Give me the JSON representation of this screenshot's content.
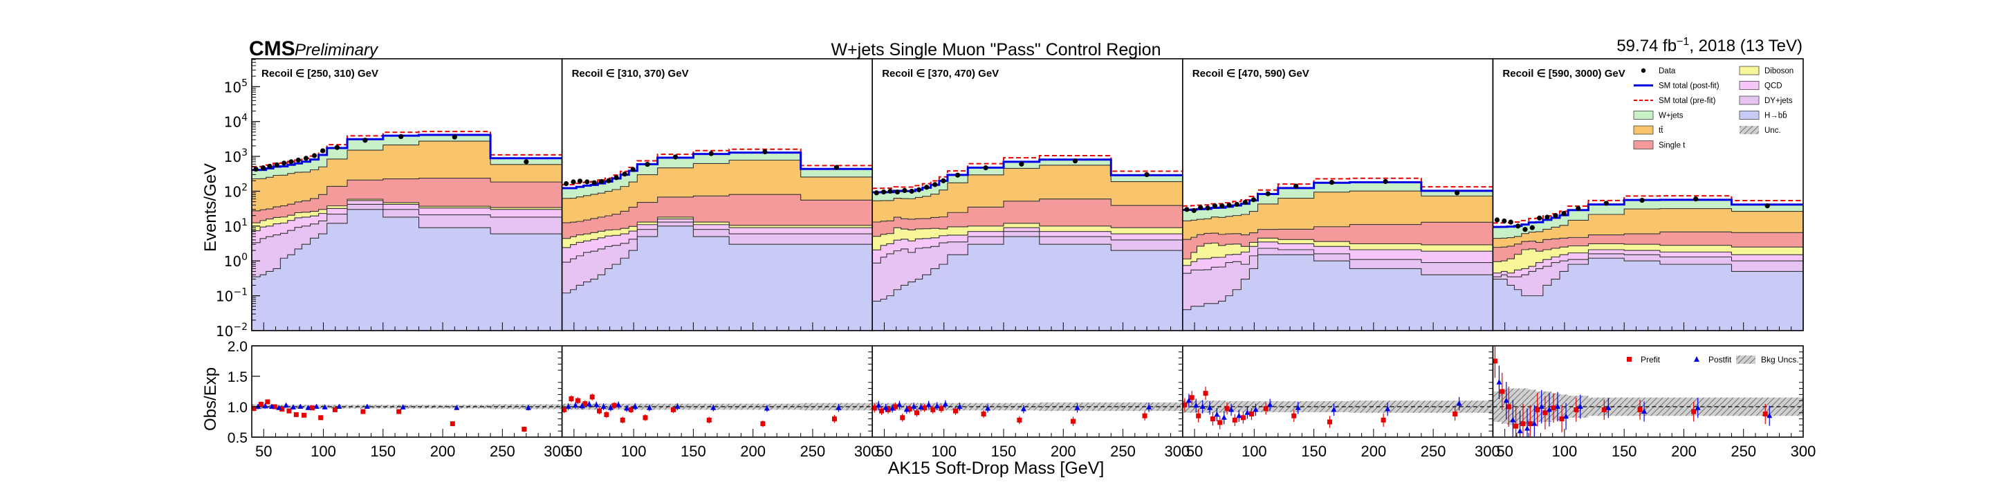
{
  "header": {
    "cms": "CMS",
    "preliminary": "Preliminary",
    "title": "W+jets Single Muon \"Pass\" Control Region",
    "lumi_value": "59.74 fb",
    "lumi_exp": "−1",
    "lumi_rest": ", 2018 (13 TeV)"
  },
  "axes": {
    "ylabel_top": "Events/GeV",
    "ylabel_bottom": "Obs/Exp",
    "xlabel": "AK15 Soft-Drop Mass [GeV]",
    "ymin_exp": -2,
    "ymax_exp": 5.8,
    "ratio_ylim": [
      0.5,
      2.0
    ],
    "ratio_ticks": [
      "0.5",
      "1.0",
      "1.5",
      "2.0"
    ],
    "log_ticks": [
      -2,
      -1,
      0,
      1,
      2,
      3,
      4,
      5
    ],
    "x_ticks": [
      50,
      100,
      150,
      200,
      250,
      300
    ]
  },
  "legend_top": {
    "data": "Data",
    "postfit": "SM total (post-fit)",
    "prefit": "SM total (pre-fit)",
    "wjets": "W+jets",
    "tt": "tt̄",
    "singlet": "Single t",
    "diboson": "Diboson",
    "qcd": "QCD",
    "dyjets": "DY+jets",
    "hbb": "H→bb̄",
    "unc": "Unc."
  },
  "legend_bottom": {
    "prefit": "Prefit",
    "postfit": "Postfit",
    "bkg": "Bkg Uncs."
  },
  "colors": {
    "hbb": "#c9cbf7",
    "dyjets": "#e7c3f4",
    "qcd": "#f5c6f7",
    "diboson": "#f7f79a",
    "singlet": "#f59a9a",
    "tt": "#f8c46c",
    "wjets": "#c7f0c7",
    "postfit": "#0000e6",
    "prefit": "#e60000"
  },
  "chart_data": {
    "type": "bar",
    "stack_order": [
      "hbb",
      "dyjets",
      "qcd",
      "diboson",
      "singlet",
      "tt",
      "wjets"
    ],
    "bin_edges": [
      40,
      47,
      52,
      58,
      64,
      70,
      76,
      82,
      89,
      96,
      103,
      120,
      150,
      180,
      240,
      300
    ],
    "panels": [
      {
        "label": "Recoil ∈ [250, 310) GeV",
        "hbb": [
          0.35,
          0.4,
          0.5,
          0.6,
          1.2,
          1.5,
          2.2,
          3.0,
          4.5,
          6.0,
          12,
          30,
          18,
          9,
          6
        ],
        "dyjets": [
          3,
          4,
          4.5,
          5,
          5,
          6,
          7,
          7,
          7,
          8,
          10,
          12,
          12,
          12,
          12
        ],
        "qcd": [
          4,
          5,
          5,
          6,
          6,
          7,
          8,
          8,
          8,
          9,
          10,
          12,
          12,
          12,
          12
        ],
        "diboson": [
          5,
          5,
          6,
          6,
          6,
          6,
          7,
          7,
          7,
          7,
          6,
          5,
          5,
          4,
          4
        ],
        "singlet": [
          15,
          15,
          15,
          18,
          20,
          22,
          25,
          28,
          35,
          50,
          100,
          150,
          180,
          200,
          150
        ],
        "tt": [
          200,
          200,
          220,
          250,
          250,
          280,
          300,
          300,
          350,
          420,
          700,
          1300,
          1900,
          2500,
          400
        ],
        "wjets": [
          180,
          180,
          200,
          220,
          230,
          250,
          280,
          350,
          400,
          600,
          900,
          1600,
          1800,
          1400,
          300
        ],
        "prefit_scale": 1.25,
        "data": [
          430,
          470,
          520,
          570,
          640,
          700,
          780,
          880,
          1050,
          1450,
          1800,
          2900,
          3700,
          3600,
          700
        ],
        "ratio_prefit": [
          0.97,
          1.04,
          1.08,
          1.0,
          0.96,
          0.93,
          0.87,
          0.86,
          0.98,
          0.82,
          0.95,
          0.92,
          0.92,
          0.72,
          0.63
        ],
        "ratio_postfit": [
          1.0,
          1.01,
          1.0,
          0.98,
          1.02,
          0.99,
          1.0,
          0.98,
          1.0,
          0.99,
          1.0,
          1.0,
          0.99,
          0.98,
          0.98
        ],
        "band": [
          0.04,
          0.04,
          0.03,
          0.03,
          0.03,
          0.03,
          0.03,
          0.03,
          0.03,
          0.03,
          0.03,
          0.03,
          0.03,
          0.03,
          0.04
        ]
      },
      {
        "label": "Recoil ∈ [310, 370) GeV",
        "hbb": [
          0.12,
          0.15,
          0.2,
          0.25,
          0.3,
          0.4,
          0.6,
          0.8,
          1.2,
          2.0,
          5,
          10,
          5,
          3,
          3
        ],
        "dyjets": [
          0.8,
          1.0,
          1.2,
          1.5,
          1.6,
          1.8,
          2,
          2,
          2,
          2.2,
          3,
          3,
          3,
          3,
          3
        ],
        "qcd": [
          1.5,
          1.8,
          2,
          2,
          2.2,
          2.4,
          2.6,
          2.6,
          2.8,
          3,
          3,
          3,
          3,
          3,
          3
        ],
        "diboson": [
          2,
          2,
          2.2,
          2.2,
          2.4,
          2.5,
          2.5,
          2.5,
          2.6,
          2.6,
          2,
          2,
          2,
          1.5,
          1.5
        ],
        "singlet": [
          8,
          8,
          8,
          9,
          10,
          11,
          12,
          14,
          18,
          25,
          35,
          50,
          60,
          70,
          45
        ],
        "tt": [
          50,
          50,
          55,
          60,
          65,
          70,
          80,
          90,
          110,
          150,
          250,
          400,
          550,
          700,
          200
        ],
        "wjets": [
          60,
          60,
          65,
          70,
          70,
          80,
          90,
          120,
          160,
          200,
          300,
          450,
          550,
          500,
          180
        ],
        "prefit_scale": 1.25,
        "data": [
          165,
          185,
          195,
          185,
          175,
          190,
          200,
          245,
          310,
          420,
          590,
          960,
          1200,
          1350,
          480
        ],
        "ratio_prefit": [
          0.95,
          1.13,
          1.1,
          1.05,
          1.16,
          0.93,
          0.87,
          1.02,
          0.78,
          0.95,
          0.82,
          0.95,
          0.78,
          0.72,
          0.8
        ],
        "ratio_postfit": [
          1.0,
          1.02,
          1.01,
          1.04,
          1.03,
          1.0,
          0.98,
          1.03,
          0.97,
          1.0,
          0.98,
          1.0,
          0.98,
          0.97,
          0.98
        ],
        "band": [
          0.05,
          0.05,
          0.05,
          0.05,
          0.05,
          0.05,
          0.05,
          0.05,
          0.05,
          0.05,
          0.05,
          0.05,
          0.05,
          0.05,
          0.06
        ]
      },
      {
        "label": "Recoil ∈ [370, 470) GeV",
        "hbb": [
          0.07,
          0.08,
          0.1,
          0.15,
          0.2,
          0.25,
          0.3,
          0.4,
          0.6,
          0.8,
          1.5,
          3,
          5,
          3,
          2
        ],
        "dyjets": [
          0.8,
          1.2,
          1.5,
          1.8,
          2,
          1.5,
          2,
          2,
          2,
          2.5,
          2,
          2,
          2,
          2,
          2
        ],
        "qcd": [
          1.2,
          1.5,
          1.5,
          2,
          2,
          2,
          2,
          2,
          2,
          2,
          2,
          2,
          2,
          2,
          2
        ],
        "diboson": [
          3,
          3,
          3,
          5,
          4,
          4,
          4,
          4,
          4,
          3,
          4,
          3,
          3,
          3,
          3
        ],
        "singlet": [
          8,
          8,
          8,
          9,
          8,
          8,
          8,
          8,
          9,
          10,
          15,
          25,
          40,
          50,
          30
        ],
        "tt": [
          40,
          40,
          40,
          45,
          45,
          45,
          50,
          55,
          65,
          90,
          150,
          260,
          400,
          500,
          150
        ],
        "wjets": [
          40,
          40,
          40,
          40,
          40,
          40,
          45,
          55,
          70,
          90,
          120,
          180,
          250,
          250,
          100
        ],
        "prefit_scale": 1.3,
        "data": [
          90,
          95,
          100,
          95,
          105,
          100,
          110,
          130,
          155,
          200,
          290,
          470,
          600,
          740,
          300
        ],
        "ratio_prefit": [
          0.98,
          0.93,
          0.95,
          1.0,
          0.82,
          0.96,
          0.9,
          0.98,
          0.95,
          0.97,
          0.93,
          0.88,
          0.78,
          0.76,
          0.85
        ],
        "ratio_postfit": [
          1.02,
          0.98,
          0.97,
          1.03,
          0.95,
          1.0,
          0.99,
          1.03,
          1.01,
          1.04,
          1.0,
          0.97,
          0.96,
          0.98,
          0.99
        ],
        "band": [
          0.07,
          0.06,
          0.06,
          0.06,
          0.06,
          0.06,
          0.06,
          0.06,
          0.06,
          0.06,
          0.06,
          0.06,
          0.06,
          0.07,
          0.07
        ]
      },
      {
        "label": "Recoil ∈ [470, 590) GeV",
        "hbb": [
          0.04,
          0.05,
          0.05,
          0.06,
          0.06,
          0.07,
          0.1,
          0.15,
          0.3,
          0.6,
          1.5,
          1.5,
          1.0,
          0.6,
          0.4
        ],
        "dyjets": [
          0.4,
          0.5,
          0.5,
          0.5,
          0.6,
          0.6,
          0.8,
          0.8,
          0.5,
          0.8,
          0.8,
          0.6,
          0.6,
          0.5,
          0.5
        ],
        "qcd": [
          0.3,
          0.4,
          0.6,
          0.6,
          0.6,
          0.6,
          0.6,
          0.6,
          1.0,
          1.2,
          1.2,
          1.0,
          1.0,
          1.0,
          1.0
        ],
        "diboson": [
          0.4,
          0.8,
          1.5,
          2,
          2,
          1.5,
          1.5,
          1.5,
          0.8,
          0.8,
          1.0,
          1.0,
          1.0,
          1.0,
          1.0
        ],
        "singlet": [
          3,
          3,
          3,
          3,
          3,
          3,
          3,
          3,
          3,
          3,
          3.5,
          4,
          6,
          8,
          10
        ],
        "tt": [
          10,
          10,
          10,
          10,
          12,
          12,
          13,
          14,
          16,
          20,
          35,
          55,
          85,
          90,
          60
        ],
        "wjets": [
          15,
          15,
          15,
          15,
          15,
          16,
          17,
          19,
          22,
          28,
          40,
          60,
          80,
          80,
          30
        ],
        "prefit_scale": 1.3,
        "data": [
          30,
          28,
          34,
          33,
          38,
          38,
          40,
          42,
          48,
          57,
          85,
          140,
          180,
          190,
          90
        ],
        "ratio_prefit": [
          1.03,
          1.15,
          0.85,
          1.22,
          0.8,
          0.74,
          0.97,
          0.78,
          0.82,
          0.88,
          0.97,
          0.85,
          0.75,
          0.78,
          0.88
        ],
        "ratio_postfit": [
          1.1,
          1.02,
          1.0,
          0.98,
          0.87,
          0.82,
          0.95,
          0.85,
          0.9,
          0.95,
          1.03,
          0.98,
          0.95,
          0.96,
          1.05
        ],
        "band": [
          0.1,
          0.1,
          0.1,
          0.1,
          0.1,
          0.1,
          0.09,
          0.09,
          0.09,
          0.09,
          0.09,
          0.09,
          0.09,
          0.1,
          0.1
        ]
      },
      {
        "label": "Recoil ∈ [590, 3000) GeV",
        "hbb": [
          0.3,
          0.3,
          0.2,
          0.15,
          0.1,
          0.1,
          0.1,
          0.2,
          0.3,
          0.5,
          0.8,
          1.2,
          1.0,
          0.8,
          0.5
        ],
        "dyjets": [
          0.05,
          0.1,
          0.15,
          0.2,
          0.3,
          0.4,
          0.5,
          0.5,
          0.6,
          0.5,
          0.3,
          0.4,
          0.5,
          0.5,
          0.5
        ],
        "qcd": [
          0.1,
          0.1,
          0.1,
          0.2,
          0.2,
          0.2,
          0.3,
          0.4,
          0.4,
          0.5,
          0.6,
          0.5,
          0.5,
          0.5,
          0.5
        ],
        "diboson": [
          0.5,
          0.5,
          0.7,
          1.0,
          1.5,
          1.5,
          1.0,
          1.0,
          1.0,
          1.0,
          1.0,
          1.0,
          1.0,
          1.0,
          1.0
        ],
        "singlet": [
          1.5,
          1.5,
          1.5,
          1.5,
          1.5,
          1.5,
          1.5,
          2,
          2,
          2,
          2,
          2.5,
          3,
          4,
          4
        ],
        "tt": [
          2,
          2,
          2,
          2,
          2.5,
          3,
          3.5,
          4,
          5,
          6,
          10,
          16,
          25,
          25,
          20
        ],
        "wjets": [
          5,
          5,
          5,
          5,
          5,
          6,
          6,
          7,
          8,
          10,
          14,
          20,
          25,
          25,
          15
        ],
        "prefit_scale": 1.3,
        "data": [
          15,
          14,
          13,
          10,
          8,
          9,
          17,
          18,
          20,
          23,
          32,
          45,
          55,
          60,
          38
        ],
        "ratio_prefit": [
          1.75,
          1.25,
          1.0,
          0.68,
          0.72,
          0.72,
          0.95,
          0.9,
          0.98,
          0.8,
          0.95,
          0.95,
          0.95,
          0.92,
          0.88
        ],
        "ratio_postfit": [
          1.4,
          1.1,
          0.78,
          0.6,
          0.64,
          0.72,
          1.0,
          0.95,
          1.0,
          0.84,
          1.0,
          0.98,
          0.92,
          0.98,
          0.85
        ],
        "band": [
          0.25,
          0.28,
          0.3,
          0.3,
          0.3,
          0.28,
          0.25,
          0.25,
          0.22,
          0.2,
          0.18,
          0.15,
          0.15,
          0.15,
          0.15
        ]
      }
    ]
  }
}
